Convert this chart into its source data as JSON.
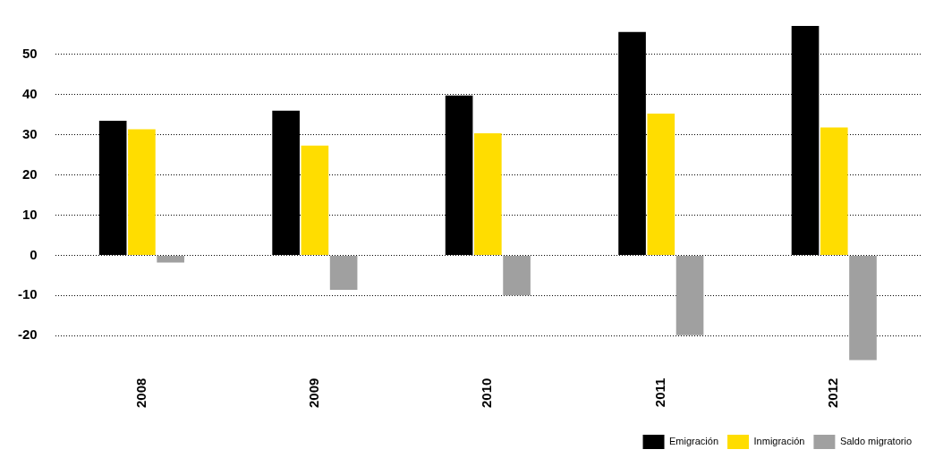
{
  "chart_data": {
    "type": "bar",
    "categories": [
      "2008",
      "2009",
      "2010",
      "2011",
      "2012"
    ],
    "series": [
      {
        "name": "Emigración",
        "color": "#000000",
        "values": [
          33.5,
          36,
          39.8,
          55.6,
          57.1
        ]
      },
      {
        "name": "Inmigración",
        "color": "#ffdd00",
        "values": [
          31.4,
          27.3,
          30.4,
          35.3,
          31.8
        ]
      },
      {
        "name": "Saldo migratorio",
        "color": "#a0a0a0",
        "values": [
          -1.8,
          -8.6,
          -10,
          -19.9,
          -26.1
        ]
      }
    ],
    "ylim": [
      -26.1,
      57.1
    ],
    "yticks": [
      -20,
      -10,
      0,
      10,
      20,
      30,
      40,
      50
    ],
    "grid": "y",
    "legend": "bottom right"
  }
}
